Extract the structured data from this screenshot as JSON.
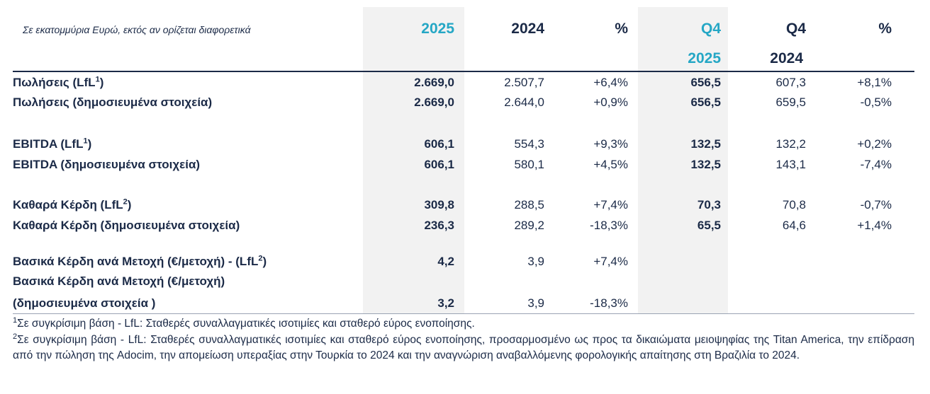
{
  "header": {
    "note": "Σε εκατομμύρια Ευρώ, εκτός αν ορίζεται διαφορετικά",
    "columns": [
      {
        "line1": "2025"
      },
      {
        "line1": "2024"
      },
      {
        "line1": "%"
      },
      {
        "line1": "Q4",
        "line2": "2025"
      },
      {
        "line1": "Q4",
        "line2": "2024"
      },
      {
        "line1": "%"
      }
    ]
  },
  "rows": [
    {
      "label": "Πωλήσεις (LfL",
      "sup": "1",
      "label_end": ")",
      "values": [
        "2.669,0",
        "2.507,7",
        "+6,4%",
        "656,5",
        "607,3",
        "+8,1%"
      ]
    },
    {
      "label": "Πωλήσεις (δημοσιευμένα στοιχεία)",
      "values": [
        "2.669,0",
        "2.644,0",
        "+0,9%",
        "656,5",
        "659,5",
        "-0,5%"
      ]
    },
    {
      "label": "EBITDA (LfL",
      "sup": "1",
      "label_end": ")",
      "values": [
        "606,1",
        "554,3",
        "+9,3%",
        "132,5",
        "132,2",
        "+0,2%"
      ]
    },
    {
      "label": "EBITDA (δημοσιευμένα στοιχεία)",
      "values": [
        "606,1",
        "580,1",
        "+4,5%",
        "132,5",
        "143,1",
        "-7,4%"
      ]
    },
    {
      "label": "Καθαρά Κέρδη (LfL",
      "sup": "2",
      "label_end": ")",
      "values": [
        "309,8",
        "288,5",
        "+7,4%",
        "70,3",
        "70,8",
        "-0,7%"
      ]
    },
    {
      "label": "Καθαρά Κέρδη (δημοσιευμένα στοιχεία)",
      "values": [
        "236,3",
        "289,2",
        "-18,3%",
        "65,5",
        "64,6",
        "+1,4%"
      ]
    },
    {
      "label": "Βασικά Κέρδη ανά Μετοχή (€/μετοχή) - (LfL",
      "sup": "2",
      "label_end": ")",
      "values": [
        "4,2",
        "3,9",
        "+7,4%"
      ]
    },
    {
      "label": "Βασικά Κέρδη ανά Μετοχή (€/μετοχή)",
      "label_line2": "(δημοσιευμένα στοιχεία )",
      "values": [
        "3,2",
        "3,9",
        "-18,3%"
      ]
    }
  ],
  "footnotes": [
    {
      "mark": "1",
      "text": "Σε συγκρίσιμη βάση - LfL: Σταθερές συναλλαγματικές ισοτιμίες και σταθερό εύρος ενοποίησης."
    },
    {
      "mark": "2",
      "text": "Σε συγκρίσιμη βάση - LfL: Σταθερές συναλλαγματικές ισοτιμίες και σταθερό εύρος ενοποίησης, προσαρμοσμένο ως προς τα δικαιώματα μειοψηφίας της Titan America, την επίδραση από την πώληση της Adocim, την απομείωση υπεραξίας στην Τουρκία το 2024 και την αναγνώριση αναβαλλόμενης φορολογικής απαίτησης στη Βραζιλία το 2024."
    }
  ]
}
